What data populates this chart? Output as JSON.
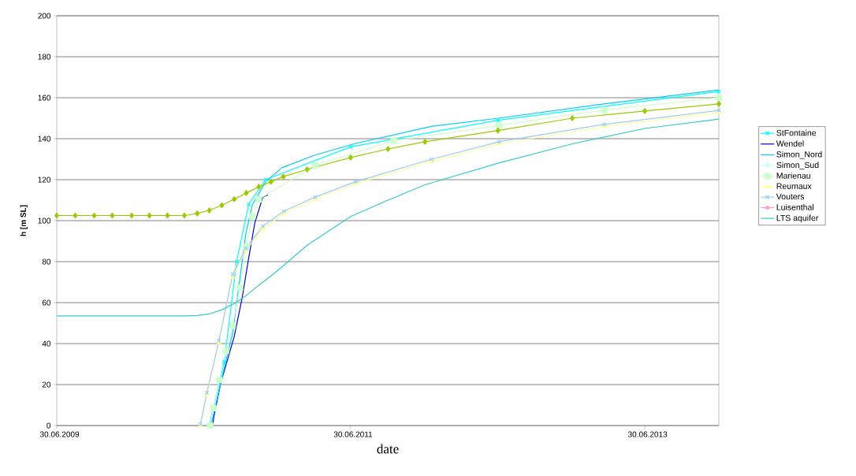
{
  "chart_data": {
    "type": "line",
    "xlabel": "date",
    "ylabel": "h [m SL]",
    "xlim": [
      "2009-06-30",
      "2013-12-31"
    ],
    "xticks": [
      {
        "value": "2009-06-30",
        "label": "30.06.2009"
      },
      {
        "value": "2011-06-30",
        "label": "30.06.2011"
      },
      {
        "value": "2013-06-30",
        "label": "30.06.2013"
      }
    ],
    "ylim": [
      0,
      200
    ],
    "yticks": [
      0,
      20,
      40,
      60,
      80,
      100,
      120,
      140,
      160,
      180,
      200
    ],
    "grid": "y",
    "legend": "right",
    "series": [
      {
        "name": "StFontaine",
        "color": "#00ffff",
        "marker": "cross",
        "x": [
          "2010-07-14",
          "2010-08-20",
          "2010-09-20",
          "2010-10-20",
          "2010-12-01",
          "2011-06-30",
          "2012-06-30",
          "2013-12-31"
        ],
        "values": [
          0,
          31,
          80,
          108,
          120,
          136,
          149,
          163
        ]
      },
      {
        "name": "Wendel",
        "color": "#0000ff",
        "marker": "none",
        "x": [
          "2010-07-22",
          "2010-07-26",
          "2010-08-11",
          "2010-09-14",
          "2010-10-04",
          "2010-10-19",
          "2010-11-04",
          "2010-11-24",
          "2010-12-07"
        ],
        "values": [
          0,
          5,
          20.4,
          43.5,
          62.7,
          80.8,
          98.8,
          111.5,
          112.7
        ]
      },
      {
        "name": "Simon_Nord",
        "color": "#00ccff",
        "marker": "none",
        "x": [
          "2010-07-18",
          "2010-08-07",
          "2010-08-24",
          "2010-09-10",
          "2010-10-13",
          "2010-10-29",
          "2010-12-01",
          "2011-01-10",
          "2011-04-03",
          "2011-07-12",
          "2012-01-17",
          "2012-07-01",
          "2013-03-21",
          "2013-12-31"
        ],
        "values": [
          0,
          17,
          31.5,
          45,
          94,
          107.7,
          119,
          125.8,
          132,
          137.7,
          146,
          150,
          157,
          163.8
        ]
      },
      {
        "name": "Simon_Sud",
        "color": "#ccffff",
        "marker": "diamond",
        "values": [
          null
        ]
      },
      {
        "name": "Marienau",
        "color": "#ccffcc",
        "marker": "square",
        "x": [
          "2010-07-16",
          "2010-07-24",
          "2010-08-08",
          "2010-08-24",
          "2010-09-10",
          "2010-09-28",
          "2010-10-13",
          "2010-10-29",
          "2010-11-14",
          "2011-04-03",
          "2011-10-15",
          "2012-07-03",
          "2013-03-21",
          "2013-12-31"
        ],
        "values": [
          0,
          8.5,
          22.3,
          36.5,
          48.8,
          67.3,
          87.3,
          102,
          110.4,
          127,
          139,
          146.5,
          154,
          160
        ]
      },
      {
        "name": "Reumaux",
        "color": "#ffff99",
        "marker": "triangle",
        "x": [
          "2010-06-22",
          "2010-07-08",
          "2010-08-07",
          "2010-09-10",
          "2010-10-13",
          "2010-11-24",
          "2011-01-15",
          "2011-04-03",
          "2011-07-12",
          "2012-01-17",
          "2012-07-03",
          "2013-03-21",
          "2013-12-31"
        ],
        "values": [
          0,
          15,
          40.5,
          72.5,
          85.5,
          96,
          103.5,
          110.5,
          118,
          129,
          137.5,
          146,
          152.8
        ]
      },
      {
        "name": "Vouters",
        "color": "#99ccff",
        "marker": "cross",
        "x": [
          "2010-06-22",
          "2010-07-08",
          "2010-08-07",
          "2010-09-10",
          "2010-10-13",
          "2010-11-24",
          "2011-01-15",
          "2011-04-03",
          "2011-07-12",
          "2012-01-17",
          "2012-07-03",
          "2013-03-21",
          "2013-12-31"
        ],
        "values": [
          0.8,
          16,
          41.5,
          73.8,
          86.5,
          97.3,
          104.6,
          111.5,
          119,
          130,
          138.5,
          147,
          153.8
        ]
      },
      {
        "name": "Luisenthal",
        "color": "#ff99cc",
        "marker": "star",
        "values": [
          null
        ]
      },
      {
        "name": "LTS aquifer",
        "color": "#33cccc",
        "marker": "none",
        "x": [
          "2009-06-30",
          "2010-01-02",
          "2010-05-13",
          "2010-06-14",
          "2010-07-14",
          "2010-08-14",
          "2010-09-14",
          "2010-10-14",
          "2010-11-14",
          "2010-12-14",
          "2011-01-14",
          "2011-03-14",
          "2011-06-30",
          "2011-10-01",
          "2012-01-01",
          "2012-06-30",
          "2013-01-01",
          "2013-06-30",
          "2013-12-31"
        ],
        "values": [
          53.5,
          53.5,
          53.5,
          53.7,
          54.5,
          56.5,
          59.5,
          63.5,
          68.5,
          73,
          78,
          88,
          102,
          110,
          117.5,
          128,
          137.5,
          145,
          149.6
        ]
      },
      {
        "color": "#99cc00",
        "marker": "diamond",
        "x": [
          "2009-06-30",
          "2009-08-15",
          "2009-10-01",
          "2009-11-15",
          "2010-01-02",
          "2010-02-15",
          "2010-04-01",
          "2010-05-13",
          "2010-06-14",
          "2010-07-14",
          "2010-08-14",
          "2010-09-14",
          "2010-10-14",
          "2010-11-14",
          "2010-12-14",
          "2011-01-14",
          "2011-03-14",
          "2011-06-30",
          "2011-10-01",
          "2012-01-01",
          "2012-06-30",
          "2013-01-01",
          "2013-06-30",
          "2013-12-31"
        ],
        "values": [
          102.5,
          102.5,
          102.5,
          102.5,
          102.5,
          102.5,
          102.5,
          102.5,
          103.5,
          105,
          107.5,
          110.5,
          113.5,
          116.5,
          119,
          121.5,
          125,
          130.8,
          135,
          138.5,
          144,
          150,
          153.5,
          157
        ]
      }
    ]
  }
}
